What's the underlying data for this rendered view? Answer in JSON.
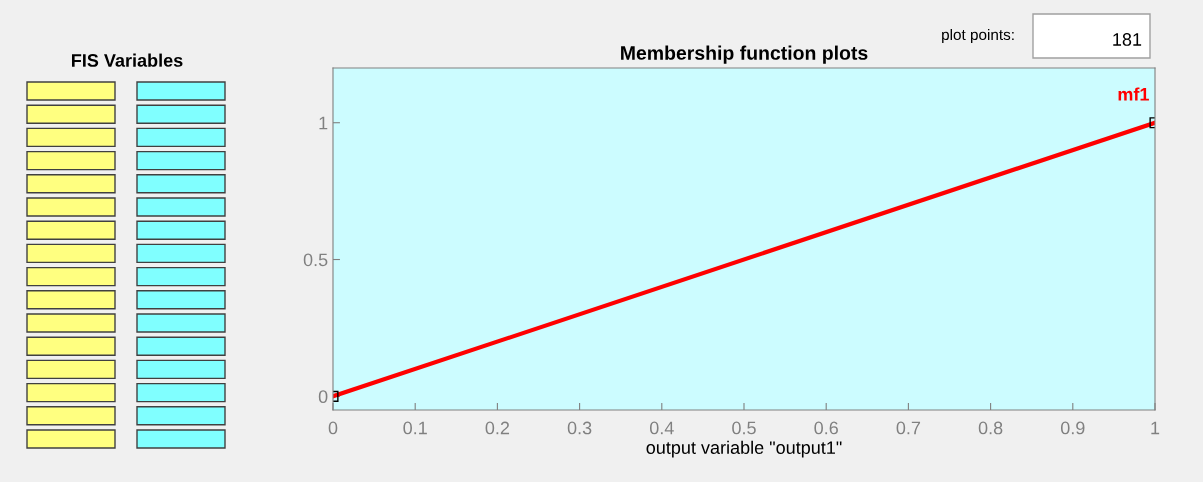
{
  "chart_data": {
    "type": "line",
    "title": "Membership function plots",
    "xlabel": "output variable \"output1\"",
    "x": [
      0,
      1
    ],
    "series": [
      {
        "color": "#ff0000",
        "values": [
          0,
          1
        ]
      }
    ],
    "marker": "square",
    "line_style": "solid",
    "xlim": [
      0,
      1
    ],
    "xticks": [
      0,
      0.1,
      0.2,
      0.3,
      0.4,
      0.5,
      0.6,
      0.7,
      0.8,
      0.9,
      1
    ],
    "ylim": [
      -0.05,
      1.2
    ],
    "yticks": [
      0,
      0.5,
      1
    ],
    "grid": false,
    "legend": false,
    "annotations": [
      {
        "text": "mf1",
        "x": 1,
        "y": 1
      },
      "plot points:",
      "181",
      "FIS Variables"
    ]
  }
}
